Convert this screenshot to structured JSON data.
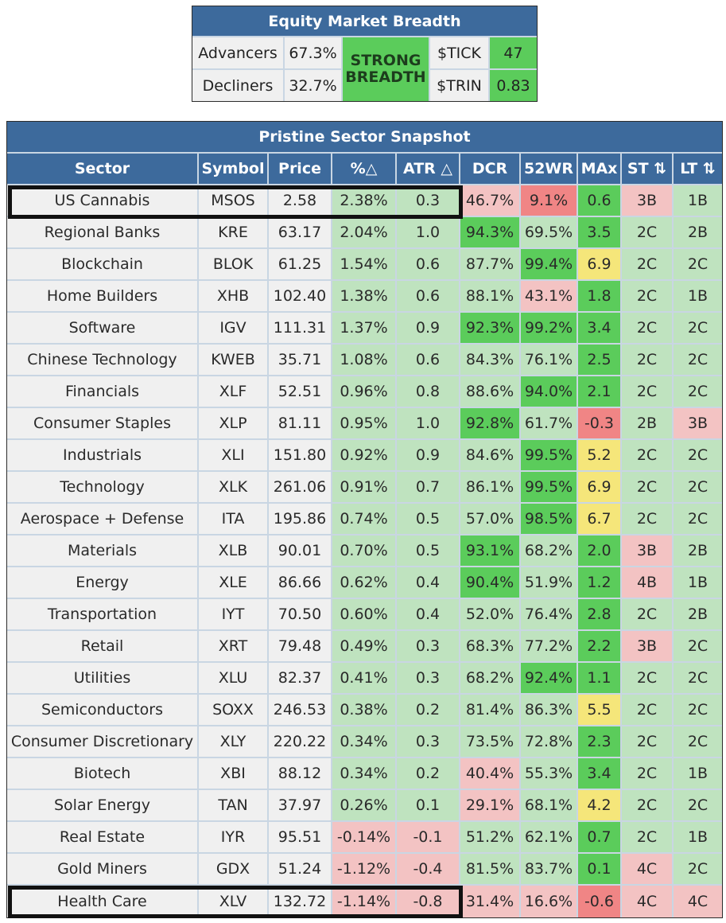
{
  "breadth": {
    "title": "Equity Market Breadth",
    "advancers_label": "Advancers",
    "advancers_value": "67.3%",
    "decliners_label": "Decliners",
    "decliners_value": "32.7%",
    "status_line1": "STRONG",
    "status_line2": "BREADTH",
    "tick_label": "$TICK",
    "tick_value": "47",
    "trin_label": "$TRIN",
    "trin_value": "0.83"
  },
  "snapshot": {
    "title": "Pristine Sector Snapshot",
    "columns": [
      "Sector",
      "Symbol",
      "Price",
      "%△",
      "ATR △",
      "DCR",
      "52WR",
      "MAx",
      "ST ⇅",
      "LT ⇅"
    ],
    "highlighted_rows": [
      0,
      22
    ],
    "rows": [
      {
        "sector": "US Cannabis",
        "symbol": "MSOS",
        "price": "2.58",
        "pct": "2.38%",
        "atr": "0.3",
        "dcr": "46.7%",
        "wr52": "9.1%",
        "max": "0.6",
        "st": "3B",
        "lt": "1B",
        "colors": [
          "lg",
          "lg",
          "lr",
          "R",
          "G",
          "lr",
          "lg"
        ]
      },
      {
        "sector": "Regional Banks",
        "symbol": "KRE",
        "price": "63.17",
        "pct": "2.04%",
        "atr": "1.0",
        "dcr": "94.3%",
        "wr52": "69.5%",
        "max": "3.5",
        "st": "2C",
        "lt": "2B",
        "colors": [
          "lg",
          "lg",
          "G",
          "lg",
          "G",
          "lg",
          "lg"
        ]
      },
      {
        "sector": "Blockchain",
        "symbol": "BLOK",
        "price": "61.25",
        "pct": "1.54%",
        "atr": "0.6",
        "dcr": "87.7%",
        "wr52": "99.4%",
        "max": "6.9",
        "st": "2C",
        "lt": "2C",
        "colors": [
          "lg",
          "lg",
          "lg",
          "G",
          "Y",
          "lg",
          "lg"
        ]
      },
      {
        "sector": "Home Builders",
        "symbol": "XHB",
        "price": "102.40",
        "pct": "1.38%",
        "atr": "0.6",
        "dcr": "88.1%",
        "wr52": "43.1%",
        "max": "1.8",
        "st": "2C",
        "lt": "1B",
        "colors": [
          "lg",
          "lg",
          "lg",
          "lr",
          "G",
          "lg",
          "lg"
        ]
      },
      {
        "sector": "Software",
        "symbol": "IGV",
        "price": "111.31",
        "pct": "1.37%",
        "atr": "0.9",
        "dcr": "92.3%",
        "wr52": "99.2%",
        "max": "3.4",
        "st": "2C",
        "lt": "2C",
        "colors": [
          "lg",
          "lg",
          "G",
          "G",
          "G",
          "lg",
          "lg"
        ]
      },
      {
        "sector": "Chinese Technology",
        "symbol": "KWEB",
        "price": "35.71",
        "pct": "1.08%",
        "atr": "0.6",
        "dcr": "84.3%",
        "wr52": "76.1%",
        "max": "2.5",
        "st": "2C",
        "lt": "2C",
        "colors": [
          "lg",
          "lg",
          "lg",
          "lg",
          "G",
          "lg",
          "lg"
        ]
      },
      {
        "sector": "Financials",
        "symbol": "XLF",
        "price": "52.51",
        "pct": "0.96%",
        "atr": "0.8",
        "dcr": "88.6%",
        "wr52": "94.0%",
        "max": "2.1",
        "st": "2C",
        "lt": "2C",
        "colors": [
          "lg",
          "lg",
          "lg",
          "G",
          "G",
          "lg",
          "lg"
        ]
      },
      {
        "sector": "Consumer Staples",
        "symbol": "XLP",
        "price": "81.11",
        "pct": "0.95%",
        "atr": "1.0",
        "dcr": "92.8%",
        "wr52": "61.7%",
        "max": "-0.3",
        "st": "2B",
        "lt": "3B",
        "colors": [
          "lg",
          "lg",
          "G",
          "lg",
          "R",
          "lg",
          "lr"
        ]
      },
      {
        "sector": "Industrials",
        "symbol": "XLI",
        "price": "151.80",
        "pct": "0.92%",
        "atr": "0.9",
        "dcr": "84.6%",
        "wr52": "99.5%",
        "max": "5.2",
        "st": "2C",
        "lt": "2C",
        "colors": [
          "lg",
          "lg",
          "lg",
          "G",
          "Y",
          "lg",
          "lg"
        ]
      },
      {
        "sector": "Technology",
        "symbol": "XLK",
        "price": "261.06",
        "pct": "0.91%",
        "atr": "0.7",
        "dcr": "86.1%",
        "wr52": "99.5%",
        "max": "6.9",
        "st": "2C",
        "lt": "2C",
        "colors": [
          "lg",
          "lg",
          "lg",
          "G",
          "Y",
          "lg",
          "lg"
        ]
      },
      {
        "sector": "Aerospace + Defense",
        "symbol": "ITA",
        "price": "195.86",
        "pct": "0.74%",
        "atr": "0.5",
        "dcr": "57.0%",
        "wr52": "98.5%",
        "max": "6.7",
        "st": "2C",
        "lt": "2C",
        "colors": [
          "lg",
          "lg",
          "lg",
          "G",
          "Y",
          "lg",
          "lg"
        ]
      },
      {
        "sector": "Materials",
        "symbol": "XLB",
        "price": "90.01",
        "pct": "0.70%",
        "atr": "0.5",
        "dcr": "93.1%",
        "wr52": "68.2%",
        "max": "2.0",
        "st": "3B",
        "lt": "2B",
        "colors": [
          "lg",
          "lg",
          "G",
          "lg",
          "G",
          "lr",
          "lg"
        ]
      },
      {
        "sector": "Energy",
        "symbol": "XLE",
        "price": "86.66",
        "pct": "0.62%",
        "atr": "0.4",
        "dcr": "90.4%",
        "wr52": "51.9%",
        "max": "1.2",
        "st": "4B",
        "lt": "1B",
        "colors": [
          "lg",
          "lg",
          "G",
          "lg",
          "G",
          "lr",
          "lg"
        ]
      },
      {
        "sector": "Transportation",
        "symbol": "IYT",
        "price": "70.50",
        "pct": "0.60%",
        "atr": "0.4",
        "dcr": "52.0%",
        "wr52": "76.4%",
        "max": "2.8",
        "st": "2C",
        "lt": "2B",
        "colors": [
          "lg",
          "lg",
          "lg",
          "lg",
          "G",
          "lg",
          "lg"
        ]
      },
      {
        "sector": "Retail",
        "symbol": "XRT",
        "price": "79.48",
        "pct": "0.49%",
        "atr": "0.3",
        "dcr": "68.3%",
        "wr52": "77.2%",
        "max": "2.2",
        "st": "3B",
        "lt": "2C",
        "colors": [
          "lg",
          "lg",
          "lg",
          "lg",
          "G",
          "lr",
          "lg"
        ]
      },
      {
        "sector": "Utilities",
        "symbol": "XLU",
        "price": "82.37",
        "pct": "0.41%",
        "atr": "0.3",
        "dcr": "68.2%",
        "wr52": "92.4%",
        "max": "1.1",
        "st": "2C",
        "lt": "2C",
        "colors": [
          "lg",
          "lg",
          "lg",
          "G",
          "G",
          "lg",
          "lg"
        ]
      },
      {
        "sector": "Semiconductors",
        "symbol": "SOXX",
        "price": "246.53",
        "pct": "0.38%",
        "atr": "0.2",
        "dcr": "81.4%",
        "wr52": "86.3%",
        "max": "5.5",
        "st": "2C",
        "lt": "2C",
        "colors": [
          "lg",
          "lg",
          "lg",
          "lg",
          "Y",
          "lg",
          "lg"
        ]
      },
      {
        "sector": "Consumer Discretionary",
        "symbol": "XLY",
        "price": "220.22",
        "pct": "0.34%",
        "atr": "0.3",
        "dcr": "73.5%",
        "wr52": "72.8%",
        "max": "2.3",
        "st": "2C",
        "lt": "2C",
        "colors": [
          "lg",
          "lg",
          "lg",
          "lg",
          "G",
          "lg",
          "lg"
        ]
      },
      {
        "sector": "Biotech",
        "symbol": "XBI",
        "price": "88.12",
        "pct": "0.34%",
        "atr": "0.2",
        "dcr": "40.4%",
        "wr52": "55.3%",
        "max": "3.4",
        "st": "2C",
        "lt": "1B",
        "colors": [
          "lg",
          "lg",
          "lr",
          "lg",
          "G",
          "lg",
          "lg"
        ]
      },
      {
        "sector": "Solar Energy",
        "symbol": "TAN",
        "price": "37.97",
        "pct": "0.26%",
        "atr": "0.1",
        "dcr": "29.1%",
        "wr52": "68.1%",
        "max": "4.2",
        "st": "2C",
        "lt": "2C",
        "colors": [
          "lg",
          "lg",
          "lr",
          "lg",
          "Y",
          "lg",
          "lg"
        ]
      },
      {
        "sector": "Real Estate",
        "symbol": "IYR",
        "price": "95.51",
        "pct": "-0.14%",
        "atr": "-0.1",
        "dcr": "51.2%",
        "wr52": "62.1%",
        "max": "0.7",
        "st": "2C",
        "lt": "1B",
        "colors": [
          "lr",
          "lr",
          "lg",
          "lg",
          "G",
          "lg",
          "lg"
        ]
      },
      {
        "sector": "Gold Miners",
        "symbol": "GDX",
        "price": "51.24",
        "pct": "-1.12%",
        "atr": "-0.4",
        "dcr": "81.5%",
        "wr52": "83.7%",
        "max": "0.1",
        "st": "4C",
        "lt": "2C",
        "colors": [
          "lr",
          "lr",
          "lg",
          "lg",
          "G",
          "lr",
          "lg"
        ]
      },
      {
        "sector": "Health Care",
        "symbol": "XLV",
        "price": "132.72",
        "pct": "-1.14%",
        "atr": "-0.8",
        "dcr": "31.4%",
        "wr52": "16.6%",
        "max": "-0.6",
        "st": "4C",
        "lt": "4C",
        "colors": [
          "lr",
          "lr",
          "lr",
          "lr",
          "R",
          "lr",
          "lr"
        ]
      }
    ]
  }
}
